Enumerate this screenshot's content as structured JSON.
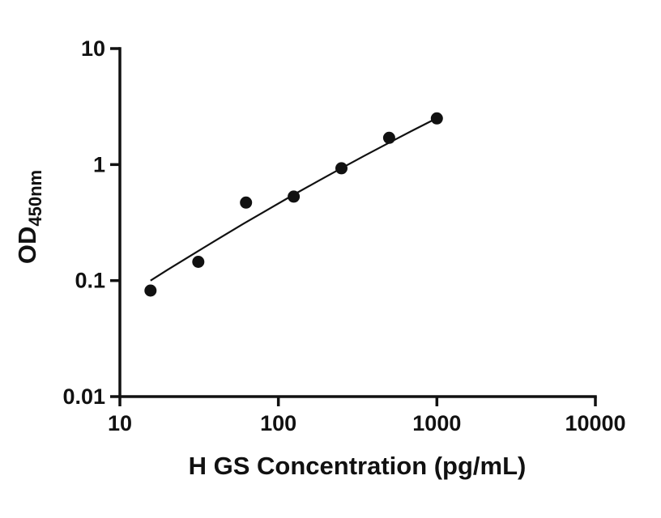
{
  "chart_data": {
    "type": "scatter",
    "title": "",
    "xlabel": "H GS Concentration (pg/mL)",
    "ylabel_main": "OD",
    "ylabel_sub": "450nm",
    "x_scale": "log10",
    "y_scale": "log10",
    "xlim": [
      10,
      10000
    ],
    "ylim": [
      0.01,
      10
    ],
    "x_ticks": [
      10,
      100,
      1000,
      10000
    ],
    "x_tick_labels": [
      "10",
      "100",
      "1000",
      "10000"
    ],
    "y_ticks": [
      0.01,
      0.1,
      1,
      10
    ],
    "y_tick_labels": [
      "0.01",
      "0.1",
      "1",
      "10"
    ],
    "grid": false,
    "axis_color": "#111111",
    "marker": {
      "shape": "circle",
      "color": "#111111",
      "radius_px": 7.5
    },
    "line_color": "#111111",
    "points": {
      "x": [
        15.6,
        31.25,
        62.5,
        125,
        250,
        500,
        1000
      ],
      "y": [
        0.082,
        0.145,
        0.47,
        0.53,
        0.93,
        1.7,
        2.5
      ]
    },
    "fit_curve": {
      "x": [
        15.6,
        20,
        30,
        40,
        60,
        80,
        125,
        180,
        250,
        350,
        500,
        700,
        1000
      ],
      "y": [
        0.1,
        0.124,
        0.174,
        0.221,
        0.308,
        0.387,
        0.55,
        0.727,
        0.931,
        1.193,
        1.545,
        1.961,
        2.513
      ]
    }
  }
}
